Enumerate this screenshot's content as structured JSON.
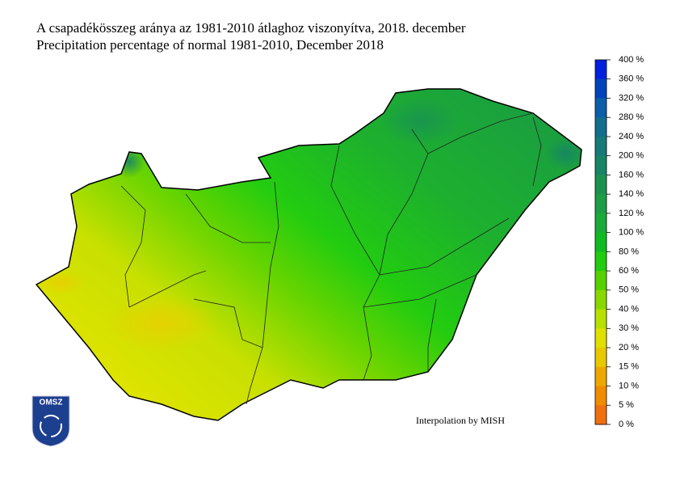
{
  "header": {
    "title_hu": "A csapadékösszeg aránya az 1981-2010 átlaghoz viszonyítva, 2018. december",
    "title_en": "Precipitation percentage of normal 1981-2010, December 2018"
  },
  "legend": {
    "labels": [
      "400 %",
      "360 %",
      "320 %",
      "280 %",
      "240 %",
      "200 %",
      "160 %",
      "140 %",
      "120 %",
      "100 %",
      "80 %",
      "60 %",
      "50 %",
      "40 %",
      "30 %",
      "20 %",
      "15 %",
      "10 %",
      "5 %",
      "0 %"
    ],
    "colors": [
      "#0020dd",
      "#0044bb",
      "#0b5ea8",
      "#136e8e",
      "#157a78",
      "#178466",
      "#1b9150",
      "#1d9d45",
      "#1aaa3a",
      "#10bb22",
      "#22cc10",
      "#55d000",
      "#88d800",
      "#b8e000",
      "#e0e000",
      "#e8c800",
      "#eca800",
      "#f08c00",
      "#f07010"
    ]
  },
  "credit": "Interpolation by MISH",
  "logo": "OMSZ"
}
